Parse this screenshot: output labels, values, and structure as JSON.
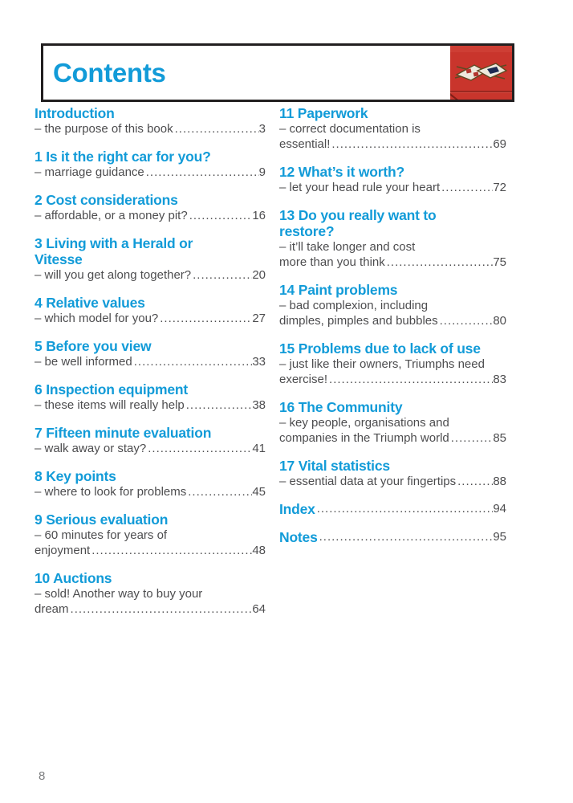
{
  "colors": {
    "accent": "#129bd8",
    "body": "#4d4d4f"
  },
  "header": {
    "title": "Contents",
    "badge": {
      "name": "triumph-crossed-pennants-emblem",
      "bg_color": "#c9352c"
    }
  },
  "toc": {
    "left": [
      {
        "title_lines": [
          "Introduction"
        ],
        "sub_lines": [
          "– the purpose of this book"
        ],
        "page": "3"
      },
      {
        "title_lines": [
          "1 Is it the right car for you?"
        ],
        "sub_lines": [
          "– marriage guidance"
        ],
        "page": "9"
      },
      {
        "title_lines": [
          "2 Cost considerations"
        ],
        "sub_lines": [
          "– affordable, or a money pit?"
        ],
        "page": "16"
      },
      {
        "title_lines": [
          "3 Living with a Herald or",
          "Vitesse"
        ],
        "sub_lines": [
          "– will you get along together?"
        ],
        "page": "20"
      },
      {
        "title_lines": [
          "4 Relative values"
        ],
        "sub_lines": [
          "– which model for you?"
        ],
        "page": "27"
      },
      {
        "title_lines": [
          "5 Before you view"
        ],
        "sub_lines": [
          "– be well informed"
        ],
        "page": "33"
      },
      {
        "title_lines": [
          "6 Inspection equipment"
        ],
        "sub_lines": [
          "– these items will really help"
        ],
        "page": "38"
      },
      {
        "title_lines": [
          "7 Fifteen minute evaluation"
        ],
        "sub_lines": [
          "– walk away or stay?"
        ],
        "page": "41"
      },
      {
        "title_lines": [
          "8 Key points"
        ],
        "sub_lines": [
          "– where to look for problems"
        ],
        "page": "45"
      },
      {
        "title_lines": [
          "9 Serious evaluation"
        ],
        "sub_lines": [
          "– 60 minutes for years of",
          "enjoyment"
        ],
        "page": "48"
      },
      {
        "title_lines": [
          "10 Auctions"
        ],
        "sub_lines": [
          "– sold! Another way to buy your",
          "dream"
        ],
        "page": "64"
      }
    ],
    "right": [
      {
        "title_lines": [
          "11 Paperwork"
        ],
        "sub_lines": [
          "– correct documentation is",
          "essential!"
        ],
        "page": "69"
      },
      {
        "title_lines": [
          "12 What’s it worth?"
        ],
        "sub_lines": [
          "– let your head rule your heart"
        ],
        "page": "72"
      },
      {
        "title_lines": [
          "13 Do you really want to",
          "restore?"
        ],
        "sub_lines": [
          "– it’ll take longer and cost",
          "more than you think"
        ],
        "page": "75"
      },
      {
        "title_lines": [
          "14 Paint problems"
        ],
        "sub_lines": [
          "– bad complexion, including",
          "dimples, pimples and bubbles"
        ],
        "page": "80"
      },
      {
        "title_lines": [
          "15 Problems due to lack of use"
        ],
        "sub_lines": [
          "– just like their owners, Triumphs need",
          "exercise!"
        ],
        "page": "83"
      },
      {
        "title_lines": [
          "16 The Community"
        ],
        "sub_lines": [
          "– key people, organisations and",
          "companies in the Triumph world"
        ],
        "page": "85"
      },
      {
        "title_lines": [
          "17 Vital statistics"
        ],
        "sub_lines": [
          "– essential data at your fingertips"
        ],
        "page": "88"
      },
      {
        "title_lines": [
          "Index"
        ],
        "sub_lines": [],
        "page": "94"
      },
      {
        "title_lines": [
          "Notes"
        ],
        "sub_lines": [],
        "page": "95"
      }
    ]
  },
  "footer": {
    "page_number": "8"
  }
}
